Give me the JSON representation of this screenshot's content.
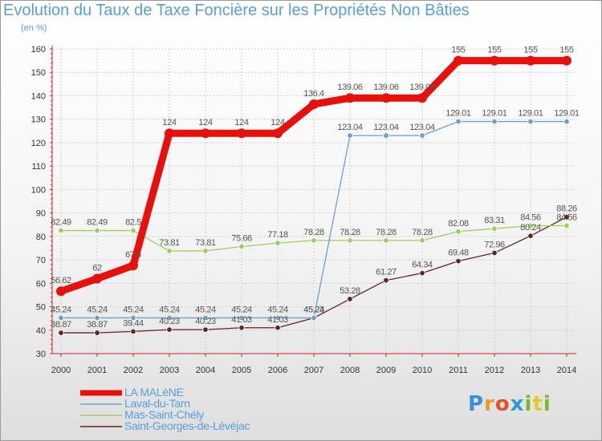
{
  "header": {
    "title": "Evolution du Taux de Taxe Foncière sur les Propriétés Non Bâties",
    "unit": "(en %)"
  },
  "logo": {
    "text": "Proxiti"
  },
  "chart_data": {
    "type": "line",
    "title": "Evolution du Taux de Taxe Foncière sur les Propriétés Non Bâties",
    "ylabel": "(en %)",
    "xlabel": "",
    "ylim": [
      30,
      160
    ],
    "yticks": [
      30,
      40,
      50,
      60,
      70,
      80,
      90,
      100,
      110,
      120,
      130,
      140,
      150,
      160
    ],
    "categories": [
      "2000",
      "2001",
      "2002",
      "2003",
      "2004",
      "2005",
      "2006",
      "2007",
      "2008",
      "2009",
      "2010",
      "2011",
      "2012",
      "2013",
      "2014"
    ],
    "grid": true,
    "legend": "bottom-left",
    "series": [
      {
        "name": "LA MALèNE",
        "color": "#e8100a",
        "values": [
          56.62,
          62,
          67.6,
          124,
          124,
          124,
          124,
          136.4,
          139.06,
          139.06,
          139.06,
          155,
          155,
          155,
          155
        ],
        "labels": [
          "56.62",
          "62",
          "67.6",
          "124",
          "124",
          "124",
          "124",
          "136.4",
          "139.06",
          "139.06",
          "139.06",
          "155",
          "155",
          "155",
          "155"
        ]
      },
      {
        "name": "Laval-du-Tarn",
        "color": "#6a9fd4",
        "values": [
          45.24,
          45.24,
          45.24,
          45.24,
          45.24,
          45.24,
          45.24,
          45.24,
          123.04,
          123.04,
          123.04,
          129.01,
          129.01,
          129.01,
          129.01
        ],
        "labels": [
          "45.24",
          "45.24",
          "45.24",
          "45.24",
          "45.24",
          "45.24",
          "45.24",
          "45.24",
          "123.04",
          "123.04",
          "123.04",
          "129.01",
          "129.01",
          "129.01",
          "129.01"
        ]
      },
      {
        "name": "Mas-Saint-Chély",
        "color": "#9ad05a",
        "values": [
          82.49,
          82.49,
          82.5,
          73.81,
          73.81,
          75.66,
          77.18,
          78.28,
          78.28,
          78.28,
          78.28,
          82.08,
          83.31,
          84.56,
          84.56
        ],
        "labels": [
          "82.49",
          "82.49",
          "82.5",
          "73.81",
          "73.81",
          "75.66",
          "77.18",
          "78.28",
          "78.28",
          "78.28",
          "78.28",
          "82.08",
          "83.31",
          "84.56",
          "84.56"
        ]
      },
      {
        "name": "Saint-Georges-de-Lévéjac",
        "color": "#6b1f1f",
        "values": [
          38.87,
          38.87,
          39.44,
          40.23,
          40.23,
          41.03,
          41.03,
          45.23,
          53.28,
          61.27,
          64.34,
          69.48,
          72.96,
          80.24,
          88.26
        ],
        "labels": [
          "38.87",
          "38.87",
          "39.44",
          "40.23",
          "40.23",
          "41.03",
          "41.03",
          "45.23",
          "53.28",
          "61.27",
          "64.34",
          "69.48",
          "72.96",
          "80.24",
          "88.26"
        ]
      }
    ]
  }
}
